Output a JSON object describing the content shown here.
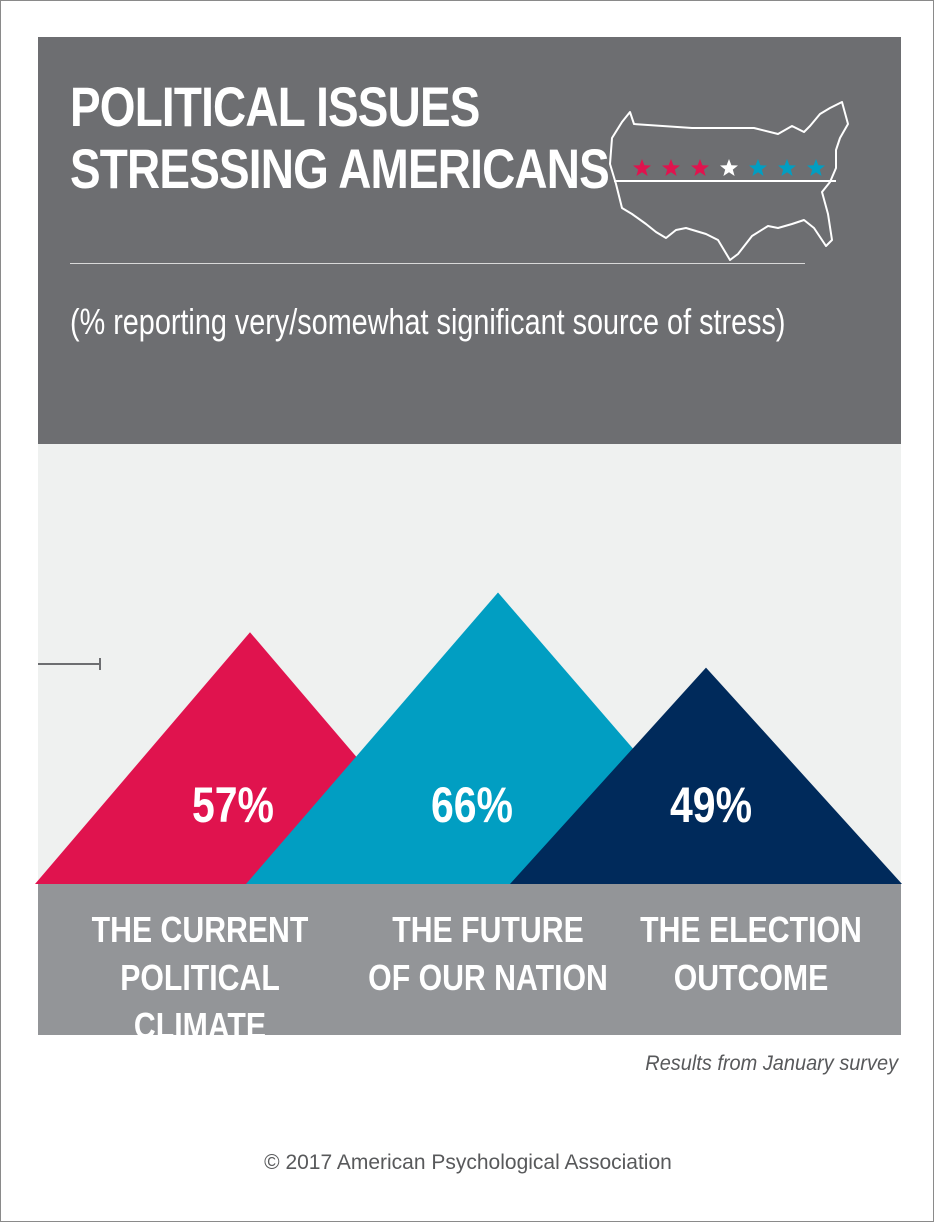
{
  "title_lines": [
    "POLITICAL ISSUES",
    "STRESSING AMERICANS"
  ],
  "subtitle": "(% reporting very/somewhat significant source of stress)",
  "icon": "us-map-icon",
  "colors": {
    "header_bg": "#6d6e71",
    "chart_bg": "#eff1f0",
    "label_band": "#939598",
    "red": "#e0134e",
    "teal": "#019ec2",
    "navy": "#002a5b",
    "white": "#ffffff"
  },
  "chart_data": {
    "type": "bar",
    "unit": "%",
    "ylim": [
      0,
      100
    ],
    "categories": [
      "THE CURRENT\nPOLITICAL CLIMATE",
      "THE FUTURE\nOF OUR NATION",
      "THE ELECTION\nOUTCOME"
    ],
    "values": [
      57,
      66,
      49
    ],
    "value_labels": [
      "57%",
      "66%",
      "49%"
    ],
    "colors": [
      "#e0134e",
      "#019ec2",
      "#002a5b"
    ]
  },
  "note": "Results from January survey",
  "copyright": "© 2017 American Psychological Association"
}
